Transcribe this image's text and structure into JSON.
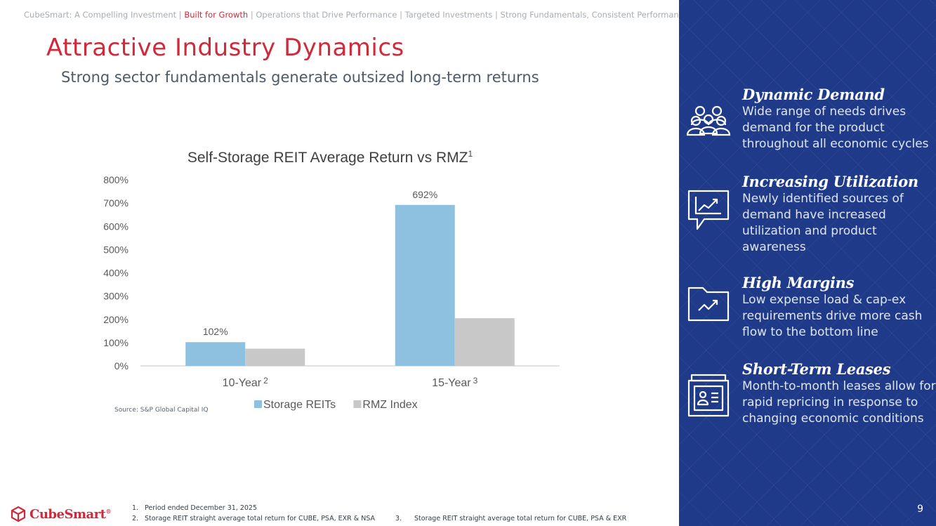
{
  "nav": {
    "prefix": "CubeSmart: A Compelling Investment |",
    "active": "Built for Growth",
    "rest": "| Operations that Drive Performance | Targeted Investments | Strong Fundamentals, Consistent Performance"
  },
  "title": "Attractive Industry Dynamics",
  "subtitle": "Strong sector fundamentals generate outsized long-term returns",
  "chart_data": {
    "type": "bar",
    "title": "Self-Storage REIT Average Return vs RMZ",
    "title_sup": "1",
    "categories": [
      {
        "label": "10-Year",
        "sup": "2"
      },
      {
        "label": "15-Year",
        "sup": "3"
      }
    ],
    "series": [
      {
        "name": "Storage REITs",
        "color": "#8ec0e0",
        "values": [
          102,
          692
        ],
        "labels": [
          "102%",
          "692%"
        ]
      },
      {
        "name": "RMZ Index",
        "color": "#c8c8c8",
        "values": [
          74,
          205
        ],
        "labels": [
          "",
          ""
        ]
      }
    ],
    "ylim": [
      0,
      800
    ],
    "yticks": [
      "0%",
      "100%",
      "200%",
      "300%",
      "400%",
      "500%",
      "600%",
      "700%",
      "800%"
    ],
    "grid": false,
    "legend": "bottom"
  },
  "source": "Source: S&P Global Capital IQ",
  "footnotes": [
    {
      "num": "1.",
      "text": "Period ended December 31, 2025"
    },
    {
      "num": "2.",
      "text": "Storage REIT straight average total return for CUBE, PSA, EXR & NSA"
    },
    {
      "num": "3.",
      "text": "Storage REIT straight average total return for CUBE, PSA & EXR"
    }
  ],
  "logo": {
    "text": "CubeSmart",
    "mark": "®"
  },
  "sidebar": {
    "items": [
      {
        "title": "Dynamic Demand",
        "text": "Wide range of needs drives demand for the product throughout all economic cycles",
        "icon": "people-group-icon"
      },
      {
        "title": "Increasing Utilization",
        "text": "Newly identified sources of demand have increased utilization and product awareness",
        "icon": "chart-trend-icon"
      },
      {
        "title": "High Margins",
        "text": "Low expense load & cap-ex requirements drive more cash flow to the bottom line",
        "icon": "folder-trend-icon"
      },
      {
        "title": "Short-Term Leases",
        "text": "Month-to-month leases allow for rapid repricing in response to changing economic conditions",
        "icon": "file-drawer-icon"
      }
    ]
  },
  "page_number": "9",
  "colors": {
    "brand_red": "#d02a3a",
    "sidebar_blue": "#1f3a88"
  }
}
